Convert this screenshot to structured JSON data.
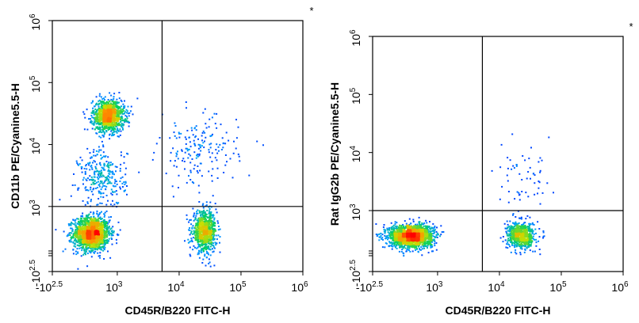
{
  "chart_data": [
    {
      "type": "scatter",
      "subtype": "flow-cytometry-density-dot-plot",
      "xlabel": "CD45R/B220 FITC-H",
      "ylabel": "CD11b PE/Cyanine5.5-H",
      "corner_mark": "*",
      "x_scale": "biexponential",
      "y_scale": "biexponential",
      "xlim": [
        -316,
        1000000
      ],
      "ylim": [
        -316,
        1000000
      ],
      "x_ticks": [
        {
          "base": "-10",
          "exp": "2.5",
          "value": -316
        },
        {
          "base": "10",
          "exp": "3",
          "value": 1000
        },
        {
          "base": "10",
          "exp": "4",
          "value": 10000
        },
        {
          "base": "10",
          "exp": "5",
          "value": 100000
        },
        {
          "base": "10",
          "exp": "6",
          "value": 1000000
        }
      ],
      "y_ticks": [
        {
          "base": "-10",
          "exp": "2.5",
          "value": -316
        },
        {
          "base": "10",
          "exp": "3",
          "value": 1000
        },
        {
          "base": "10",
          "exp": "4",
          "value": 10000
        },
        {
          "base": "10",
          "exp": "5",
          "value": 100000
        },
        {
          "base": "10",
          "exp": "6",
          "value": 1000000
        }
      ],
      "quadrant_gate": {
        "x": 5300,
        "y": 1000
      },
      "populations": [
        {
          "x": 150,
          "y": 150,
          "x_spread": 0.09,
          "y_spread": 0.085,
          "count": 1600
        },
        {
          "x": 650,
          "y": 30000,
          "x_spread": 0.08,
          "y_spread": 0.08,
          "count": 1100
        },
        {
          "x": 25000,
          "y": 200,
          "x_spread": 0.06,
          "y_spread": 0.1,
          "count": 800
        },
        {
          "x": 450,
          "y": 3000,
          "x_spread": 0.12,
          "y_spread": 0.15,
          "count": 300
        },
        {
          "x": 20000,
          "y": 8000,
          "x_spread": 0.2,
          "y_spread": 0.18,
          "count": 180
        }
      ],
      "colormap": [
        "#0000ff",
        "#00a0ff",
        "#00d060",
        "#c8e000",
        "#ff9000",
        "#ff0000"
      ]
    },
    {
      "type": "scatter",
      "subtype": "flow-cytometry-density-dot-plot",
      "xlabel": "CD45R/B220 FITC-H",
      "ylabel": "Rat IgG2b PE/Cyanine5.5-H",
      "corner_mark": "*",
      "x_scale": "biexponential",
      "y_scale": "biexponential",
      "xlim": [
        -316,
        1000000
      ],
      "ylim": [
        -316,
        1000000
      ],
      "x_ticks": [
        {
          "base": "-10",
          "exp": "2.5",
          "value": -316
        },
        {
          "base": "10",
          "exp": "3",
          "value": 1000
        },
        {
          "base": "10",
          "exp": "4",
          "value": 10000
        },
        {
          "base": "10",
          "exp": "5",
          "value": 100000
        },
        {
          "base": "10",
          "exp": "6",
          "value": 1000000
        }
      ],
      "y_ticks": [
        {
          "base": "-10",
          "exp": "2.5",
          "value": -316
        },
        {
          "base": "10",
          "exp": "3",
          "value": 1000
        },
        {
          "base": "10",
          "exp": "4",
          "value": 10000
        },
        {
          "base": "10",
          "exp": "5",
          "value": 100000
        },
        {
          "base": "10",
          "exp": "6",
          "value": 1000000
        }
      ],
      "quadrant_gate": {
        "x": 5300,
        "y": 1000
      },
      "populations": [
        {
          "x": 130,
          "y": 150,
          "x_spread": 0.11,
          "y_spread": 0.06,
          "count": 1900
        },
        {
          "x": 22000,
          "y": 160,
          "x_spread": 0.07,
          "y_spread": 0.07,
          "count": 700
        },
        {
          "x": 25000,
          "y": 3000,
          "x_spread": 0.15,
          "y_spread": 0.18,
          "count": 60
        }
      ],
      "colormap": [
        "#0000ff",
        "#00a0ff",
        "#00d060",
        "#c8e000",
        "#ff9000",
        "#ff0000"
      ]
    }
  ]
}
